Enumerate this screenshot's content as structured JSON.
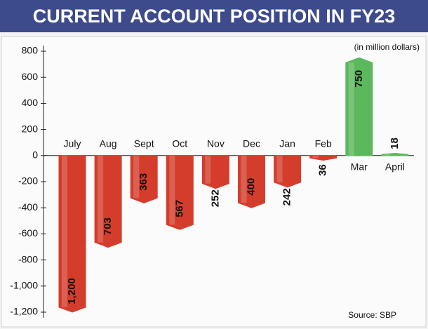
{
  "chart_data": {
    "type": "bar",
    "title": "CURRENT ACCOUNT POSITION IN FY23",
    "unit_note": "(in million dollars)",
    "source": "Source: SBP",
    "categories": [
      "July",
      "Aug",
      "Sept",
      "Oct",
      "Nov",
      "Dec",
      "Jan",
      "Feb",
      "Mar",
      "April"
    ],
    "values": [
      -1200,
      -703,
      -363,
      -567,
      -252,
      -400,
      -242,
      -36,
      750,
      18
    ],
    "value_labels": [
      "1,200",
      "703",
      "363",
      "567",
      "252",
      "400",
      "242",
      "36",
      "750",
      "18"
    ],
    "negative_color": "#d43d2c",
    "positive_color": "#5cb85c",
    "ylim": [
      -1200,
      800
    ],
    "yticks": [
      800,
      600,
      400,
      200,
      0,
      -200,
      -400,
      -600,
      -800,
      {
        "value": -1000,
        "label": "-1,000"
      },
      {
        "value": -1200,
        "label": "-1,200"
      }
    ]
  }
}
